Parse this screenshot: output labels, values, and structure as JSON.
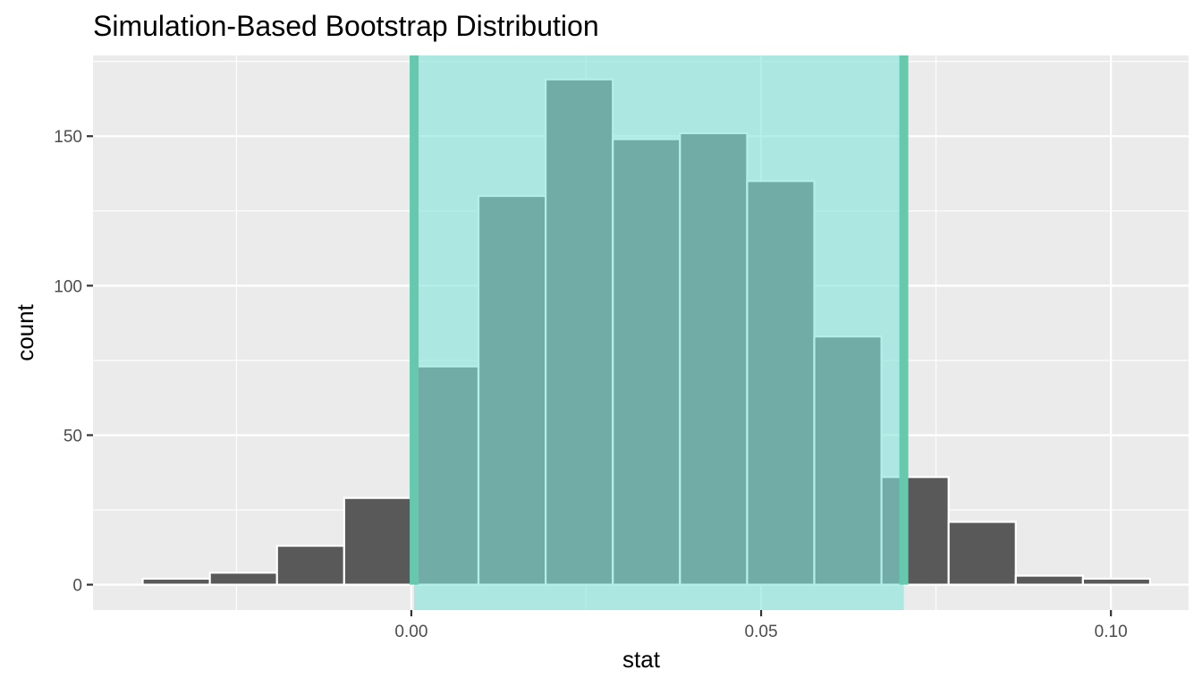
{
  "chart_data": {
    "type": "bar",
    "title": "Simulation-Based Bootstrap Distribution",
    "xlabel": "stat",
    "ylabel": "count",
    "bin_width": 0.0096,
    "bins": [
      {
        "x0": -0.0384,
        "x1": -0.0288,
        "count": 2
      },
      {
        "x0": -0.0288,
        "x1": -0.0192,
        "count": 4
      },
      {
        "x0": -0.0192,
        "x1": -0.0096,
        "count": 13
      },
      {
        "x0": -0.0096,
        "x1": 0.0,
        "count": 29
      },
      {
        "x0": 0.0,
        "x1": 0.0096,
        "count": 73
      },
      {
        "x0": 0.0096,
        "x1": 0.0192,
        "count": 130
      },
      {
        "x0": 0.0192,
        "x1": 0.0288,
        "count": 169
      },
      {
        "x0": 0.0288,
        "x1": 0.0384,
        "count": 149
      },
      {
        "x0": 0.0384,
        "x1": 0.048,
        "count": 151
      },
      {
        "x0": 0.048,
        "x1": 0.0576,
        "count": 135
      },
      {
        "x0": 0.0576,
        "x1": 0.0672,
        "count": 83
      },
      {
        "x0": 0.0672,
        "x1": 0.0768,
        "count": 36
      },
      {
        "x0": 0.0768,
        "x1": 0.0864,
        "count": 21
      },
      {
        "x0": 0.0864,
        "x1": 0.096,
        "count": 3
      },
      {
        "x0": 0.096,
        "x1": 0.1056,
        "count": 2
      }
    ],
    "xlim": [
      -0.0455,
      0.1111
    ],
    "ylim": [
      -8.5,
      177
    ],
    "x_ticks": [
      {
        "value": 0.0,
        "label": "0.00"
      },
      {
        "value": 0.05,
        "label": "0.05"
      },
      {
        "value": 0.1,
        "label": "0.10"
      }
    ],
    "x_minor_ticks": [
      -0.025,
      0.025,
      0.075
    ],
    "y_ticks": [
      {
        "value": 0,
        "label": "0"
      },
      {
        "value": 50,
        "label": "50"
      },
      {
        "value": 100,
        "label": "100"
      },
      {
        "value": 150,
        "label": "150"
      }
    ],
    "y_minor_ticks": [
      25,
      75,
      125,
      175
    ],
    "shaded_interval": {
      "lower": 0.0004,
      "upper": 0.0704
    },
    "grid": true,
    "colors": {
      "panel_background": "#ebebeb",
      "grid": "#ffffff",
      "bar_fill": "#595959",
      "bar_outline": "#ffffff",
      "interval_fill": "#84e4dc",
      "interval_line": "#66c8ad",
      "tick_label": "#4d4d4d"
    }
  }
}
